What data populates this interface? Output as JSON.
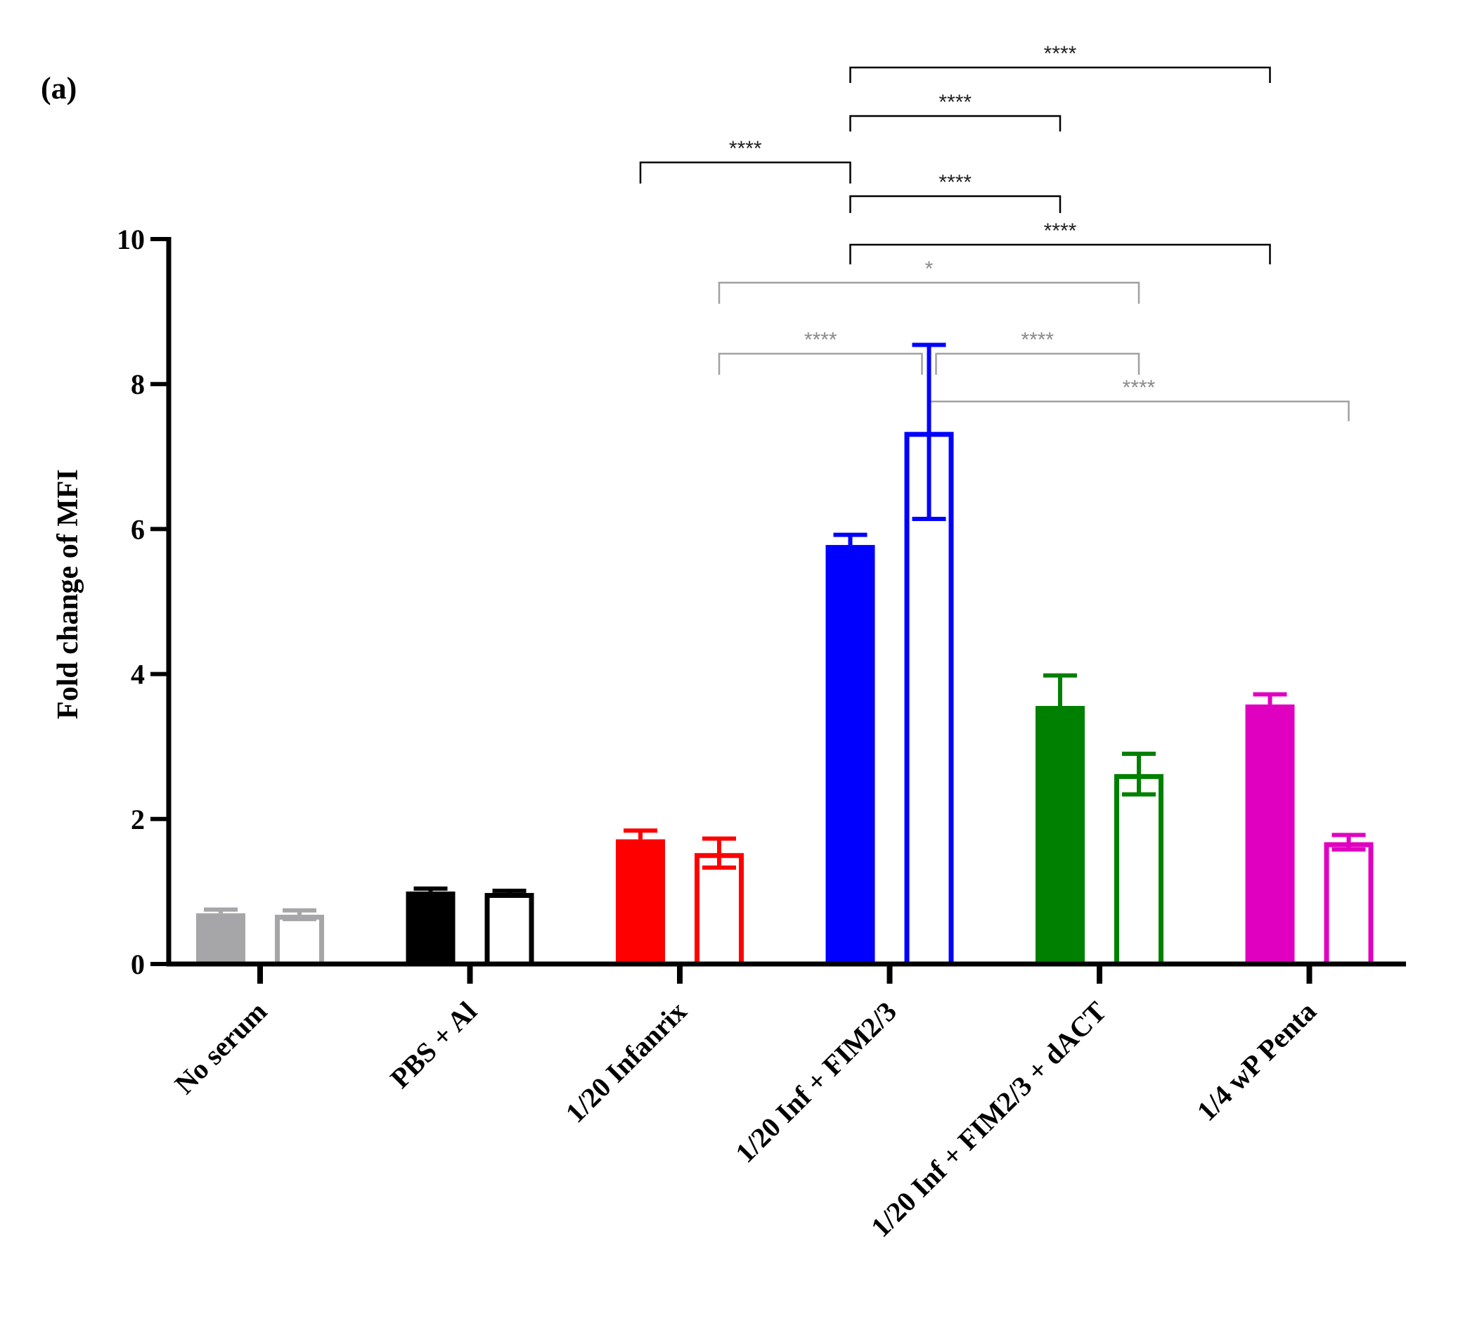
{
  "panel_label": "(a)",
  "chart_data": {
    "type": "bar",
    "title": "",
    "xlabel": "",
    "ylabel": "Fold change of MFI",
    "ylim": [
      0,
      10
    ],
    "yticks": [
      0,
      2,
      4,
      6,
      8,
      10
    ],
    "legend": "none",
    "categories": [
      "No serum",
      "PBS + Al",
      "1/20 Infanrix",
      "1/20 Inf + FIM2/3",
      "1/20 Inf + FIM2/3 + dACT",
      "1/4 wP Penta"
    ],
    "colors": [
      "#a6a6a8",
      "#000000",
      "#ff0000",
      "#0000ff",
      "#008000",
      "#e000c0"
    ],
    "series": [
      {
        "name": "filled",
        "style": "filled",
        "values": [
          0.7,
          1.0,
          1.72,
          5.78,
          3.56,
          3.58
        ],
        "errors": [
          0.05,
          0.04,
          0.12,
          0.14,
          0.42,
          0.14
        ]
      },
      {
        "name": "open",
        "style": "open",
        "values": [
          0.68,
          0.98,
          1.53,
          7.34,
          2.62,
          1.68
        ],
        "errors": [
          0.06,
          0.03,
          0.2,
          1.2,
          0.28,
          0.1
        ]
      }
    ],
    "comparisons": [
      {
        "from": {
          "category": 3,
          "series": 0
        },
        "to": {
          "category": 5,
          "series": 0
        },
        "label": "****",
        "color": "black"
      },
      {
        "from": {
          "category": 3,
          "series": 0
        },
        "to": {
          "category": 4,
          "series": 0
        },
        "label": "****",
        "color": "black"
      },
      {
        "from": {
          "category": 2,
          "series": 0
        },
        "to": {
          "category": 3,
          "series": 0
        },
        "label": "****",
        "color": "black"
      },
      {
        "from": {
          "category": 3,
          "series": 0
        },
        "to": {
          "category": 4,
          "series": 0
        },
        "label": "****",
        "color": "black"
      },
      {
        "from": {
          "category": 3,
          "series": 0
        },
        "to": {
          "category": 5,
          "series": 0
        },
        "label": "****",
        "color": "black"
      },
      {
        "from": {
          "category": 2,
          "series": 1
        },
        "to": {
          "category": 4,
          "series": 1
        },
        "label": "*",
        "color": "gray"
      },
      {
        "from": {
          "category": 2,
          "series": 1
        },
        "to": {
          "category": 3,
          "series": 1
        },
        "label": "****",
        "color": "gray"
      },
      {
        "from": {
          "category": 3,
          "series": 1
        },
        "to": {
          "category": 4,
          "series": 1
        },
        "label": "****",
        "color": "gray"
      },
      {
        "from": {
          "category": 3,
          "series": 1
        },
        "to": {
          "category": 5,
          "series": 1
        },
        "label": "****",
        "color": "gray"
      }
    ]
  }
}
